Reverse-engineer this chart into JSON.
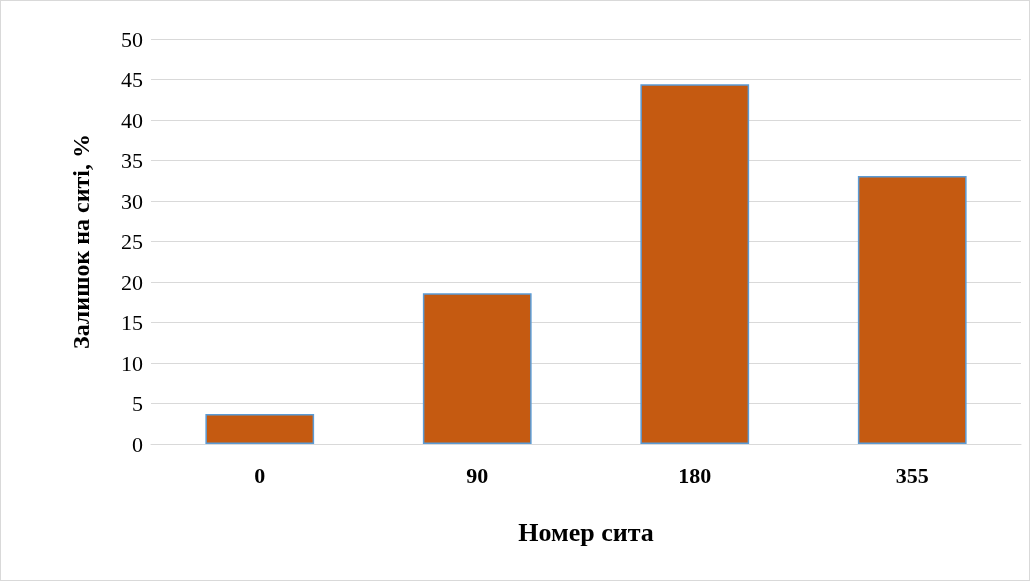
{
  "chart_data": {
    "type": "bar",
    "xlabel": "Номер сита",
    "ylabel": "Залишок на ситі, %",
    "categories": [
      "0",
      "90",
      "180",
      "355"
    ],
    "values": [
      3.7,
      18.6,
      44.4,
      33.1
    ],
    "color": "#c55a11",
    "ylim": [
      0,
      50
    ],
    "yticks": [
      0,
      5,
      10,
      15,
      20,
      25,
      30,
      35,
      40,
      45,
      50
    ],
    "grid": "y"
  }
}
